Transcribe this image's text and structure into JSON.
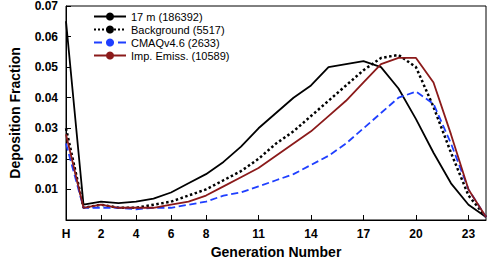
{
  "chart_data": {
    "type": "line",
    "x_label": "Generation Number",
    "y_label": "Deposition Fraction",
    "x": [
      0,
      1,
      2,
      3,
      4,
      5,
      6,
      7,
      8,
      9,
      10,
      11,
      12,
      13,
      14,
      15,
      16,
      17,
      18,
      19,
      20,
      21,
      22,
      23,
      24
    ],
    "xlim": [
      0,
      24
    ],
    "xticks": [
      {
        "value": 0,
        "label": "H"
      },
      2,
      4,
      6,
      8,
      11,
      14,
      17,
      20,
      23
    ],
    "ylim": [
      0,
      0.07
    ],
    "yticks": [
      0.01,
      0.02,
      0.03,
      0.04,
      0.05,
      0.06,
      0.07
    ],
    "grid": false,
    "legend": "upper left",
    "series": [
      {
        "name": "17 m (186392)",
        "color": "#000000",
        "line_style": "solid",
        "values": [
          0.065,
          0.005,
          0.006,
          0.0055,
          0.006,
          0.007,
          0.009,
          0.012,
          0.015,
          0.019,
          0.024,
          0.03,
          0.035,
          0.04,
          0.044,
          0.05,
          0.051,
          0.052,
          0.05,
          0.043,
          0.033,
          0.022,
          0.012,
          0.005,
          0.001
        ]
      },
      {
        "name": "Background (5517)",
        "color": "#000000",
        "line_style": "dotted",
        "values": [
          0.03,
          0.004,
          0.005,
          0.004,
          0.004,
          0.005,
          0.006,
          0.008,
          0.01,
          0.013,
          0.016,
          0.02,
          0.025,
          0.029,
          0.034,
          0.039,
          0.044,
          0.049,
          0.053,
          0.054,
          0.05,
          0.037,
          0.022,
          0.008,
          0.001
        ]
      },
      {
        "name": "CMAQv4.6 (2633)",
        "color": "#1f3fff",
        "line_style": "dashed",
        "values": [
          0.025,
          0.004,
          0.004,
          0.004,
          0.0035,
          0.004,
          0.004,
          0.005,
          0.006,
          0.008,
          0.009,
          0.011,
          0.013,
          0.015,
          0.018,
          0.021,
          0.025,
          0.03,
          0.035,
          0.04,
          0.042,
          0.038,
          0.025,
          0.01,
          0.001
        ]
      },
      {
        "name": "Imp. Emiss. (10589)",
        "color": "#8b1a1a",
        "line_style": "solid",
        "values": [
          0.028,
          0.004,
          0.005,
          0.004,
          0.004,
          0.004,
          0.005,
          0.006,
          0.008,
          0.011,
          0.014,
          0.017,
          0.021,
          0.025,
          0.029,
          0.034,
          0.039,
          0.045,
          0.051,
          0.053,
          0.053,
          0.045,
          0.028,
          0.01,
          0.001
        ]
      }
    ]
  }
}
